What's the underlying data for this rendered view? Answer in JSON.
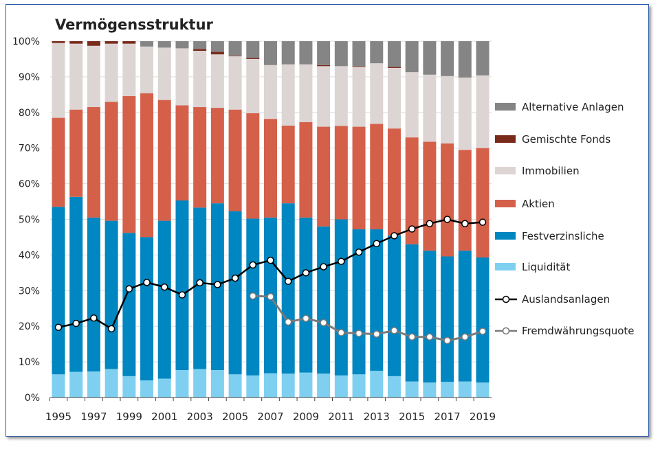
{
  "chart_data": {
    "type": "bar",
    "title": "Vermögensstruktur",
    "stacked": true,
    "ylim": [
      0,
      100
    ],
    "yticks": [
      "0%",
      "10%",
      "20%",
      "30%",
      "40%",
      "50%",
      "60%",
      "70%",
      "80%",
      "90%",
      "100%"
    ],
    "grid": true,
    "legend_position": "right",
    "categories": [
      1995,
      1996,
      1997,
      1998,
      1999,
      2000,
      2001,
      2002,
      2003,
      2004,
      2005,
      2006,
      2007,
      2008,
      2009,
      2010,
      2011,
      2012,
      2013,
      2014,
      2015,
      2016,
      2017,
      2018,
      2019
    ],
    "xtick_labels": [
      "1995",
      "1997",
      "1999",
      "2001",
      "2003",
      "2005",
      "2007",
      "2009",
      "2011",
      "2013",
      "2015",
      "2017",
      "2019"
    ],
    "series": [
      {
        "name": "Liquidität",
        "color": "#7fd0f0",
        "values": [
          6.5,
          7.2,
          7.3,
          8.0,
          6.0,
          4.8,
          5.3,
          7.7,
          8.0,
          7.7,
          6.5,
          6.2,
          6.8,
          6.7,
          7.0,
          6.7,
          6.2,
          6.5,
          7.5,
          6.0,
          4.5,
          4.2,
          4.4,
          4.5,
          4.2
        ]
      },
      {
        "name": "Festverzinsliche",
        "color": "#0086c0",
        "values": [
          47.0,
          49.1,
          43.2,
          41.6,
          40.2,
          40.2,
          44.3,
          47.6,
          45.3,
          46.8,
          45.8,
          44.0,
          43.7,
          47.8,
          43.5,
          41.3,
          43.8,
          40.7,
          39.7,
          39.5,
          38.5,
          37.0,
          35.2,
          36.7,
          35.1
        ]
      },
      {
        "name": "Aktien",
        "color": "#d4604a",
        "values": [
          25.0,
          24.5,
          31.0,
          33.4,
          38.4,
          40.4,
          33.9,
          26.7,
          28.2,
          26.8,
          28.5,
          29.6,
          27.7,
          21.8,
          26.8,
          28.0,
          26.2,
          28.8,
          29.6,
          30.0,
          30.0,
          30.6,
          31.7,
          28.3,
          30.7
        ]
      },
      {
        "name": "Immobilien",
        "color": "#ddd5d3",
        "values": [
          21.0,
          18.5,
          17.2,
          16.3,
          14.7,
          13.1,
          14.7,
          16.0,
          15.8,
          15.0,
          15.0,
          15.2,
          15.1,
          17.2,
          16.2,
          17.0,
          16.8,
          16.8,
          17.0,
          17.0,
          18.3,
          18.8,
          18.9,
          20.3,
          20.4
        ]
      },
      {
        "name": "Gemischte Fonds",
        "color": "#7a2a1a",
        "values": [
          0.5,
          0.7,
          1.3,
          0.7,
          0.7,
          0,
          0,
          0,
          0.5,
          0.7,
          0.2,
          0.3,
          0,
          0,
          0,
          0.3,
          0,
          0.2,
          0,
          0.3,
          0,
          0,
          0,
          0,
          0
        ]
      },
      {
        "name": "Alternative Anlagen",
        "color": "#858585",
        "values": [
          0,
          0,
          0,
          0,
          0,
          1.5,
          1.8,
          2.0,
          2.2,
          3.0,
          4.0,
          4.7,
          6.7,
          6.5,
          6.5,
          6.7,
          7.0,
          7.0,
          6.2,
          7.2,
          8.7,
          9.4,
          9.8,
          10.2,
          9.6
        ]
      }
    ],
    "lines": [
      {
        "name": "Auslandsanlagen",
        "color": "#000000",
        "values": [
          19.7,
          20.8,
          22.3,
          19.3,
          30.5,
          32.3,
          31.0,
          28.8,
          32.2,
          31.7,
          33.5,
          37.2,
          38.5,
          32.6,
          35.0,
          36.7,
          38.2,
          40.8,
          43.2,
          45.4,
          47.3,
          48.8,
          50.0,
          48.8,
          49.2
        ]
      },
      {
        "name": "Fremdwährungsquote",
        "color": "#7a7a7a",
        "values": [
          null,
          null,
          null,
          null,
          null,
          null,
          null,
          null,
          null,
          null,
          null,
          28.5,
          28.3,
          21.2,
          22.2,
          21.0,
          18.2,
          18.0,
          17.8,
          18.8,
          17.0,
          17.0,
          16.0,
          17.0,
          18.6
        ]
      }
    ],
    "legend_order": [
      "Alternative Anlagen",
      "Gemischte Fonds",
      "Immobilien",
      "Aktien",
      "Festverzinsliche",
      "Liquidität",
      "Auslandsanlagen",
      "Fremdwährungsquote"
    ]
  }
}
